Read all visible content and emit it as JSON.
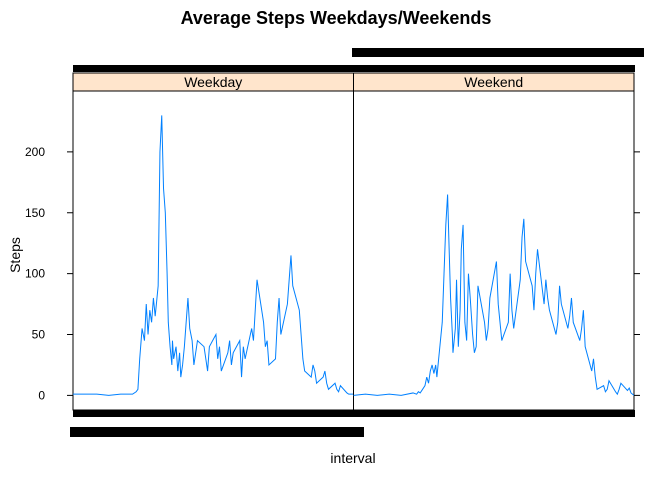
{
  "chart_data": {
    "type": "line",
    "title": "Average Steps Weekdays/Weekends",
    "xlabel": "interval",
    "ylabel": "Steps",
    "ylim": [
      -12,
      250
    ],
    "yticks": [
      0,
      50,
      100,
      150,
      200
    ],
    "xlim": [
      0,
      2355
    ],
    "grid": false,
    "legend": "none",
    "line_color": "#0080ff",
    "strip_color": "#ffe5cc",
    "panels": [
      {
        "name": "Weekday",
        "x": [
          0,
          100,
          200,
          300,
          400,
          500,
          530,
          545,
          560,
          580,
          600,
          615,
          630,
          645,
          660,
          675,
          690,
          700,
          715,
          730,
          745,
          760,
          775,
          790,
          800,
          815,
          830,
          835,
          845,
          855,
          865,
          880,
          895,
          905,
          920,
          935,
          950,
          965,
          980,
          1000,
          1015,
          1030,
          1045,
          1100,
          1115,
          1130,
          1145,
          1200,
          1215,
          1230,
          1245,
          1300,
          1315,
          1330,
          1345,
          1400,
          1415,
          1430,
          1445,
          1500,
          1515,
          1530,
          1545,
          1600,
          1615,
          1630,
          1645,
          1700,
          1715,
          1730,
          1745,
          1800,
          1815,
          1830,
          1845,
          1900,
          1915,
          1930,
          1945,
          2000,
          2015,
          2030,
          2045,
          2100,
          2115,
          2130,
          2145,
          2200,
          2215,
          2230,
          2245,
          2300,
          2315,
          2330,
          2355
        ],
        "y": [
          1,
          1,
          1,
          0,
          1,
          1,
          3,
          5,
          30,
          55,
          45,
          75,
          50,
          70,
          60,
          80,
          65,
          75,
          90,
          200,
          230,
          170,
          150,
          100,
          60,
          40,
          25,
          45,
          30,
          35,
          40,
          20,
          35,
          15,
          25,
          40,
          60,
          80,
          55,
          45,
          25,
          35,
          45,
          40,
          30,
          20,
          40,
          50,
          30,
          40,
          20,
          35,
          45,
          25,
          35,
          45,
          15,
          40,
          30,
          55,
          45,
          70,
          95,
          60,
          40,
          45,
          25,
          30,
          60,
          80,
          50,
          75,
          95,
          115,
          90,
          70,
          50,
          30,
          20,
          15,
          25,
          20,
          10,
          15,
          20,
          10,
          5,
          10,
          5,
          3,
          8,
          2,
          1,
          1,
          1
        ]
      },
      {
        "name": "Weekend",
        "x": [
          0,
          100,
          200,
          300,
          400,
          500,
          530,
          545,
          560,
          580,
          600,
          615,
          630,
          645,
          660,
          675,
          690,
          700,
          715,
          730,
          745,
          760,
          775,
          790,
          800,
          815,
          830,
          835,
          845,
          855,
          865,
          880,
          895,
          905,
          920,
          935,
          950,
          965,
          980,
          1000,
          1015,
          1030,
          1045,
          1100,
          1115,
          1130,
          1145,
          1200,
          1215,
          1230,
          1245,
          1300,
          1315,
          1330,
          1345,
          1400,
          1415,
          1430,
          1445,
          1500,
          1515,
          1530,
          1545,
          1600,
          1615,
          1630,
          1645,
          1700,
          1715,
          1730,
          1745,
          1800,
          1815,
          1830,
          1845,
          1900,
          1915,
          1930,
          1945,
          2000,
          2015,
          2030,
          2045,
          2100,
          2115,
          2130,
          2145,
          2200,
          2215,
          2230,
          2245,
          2300,
          2315,
          2330,
          2355
        ],
        "y": [
          0,
          1,
          0,
          1,
          0,
          2,
          1,
          3,
          2,
          5,
          8,
          15,
          10,
          20,
          25,
          18,
          25,
          15,
          30,
          45,
          60,
          100,
          140,
          165,
          130,
          80,
          50,
          35,
          45,
          55,
          95,
          40,
          70,
          120,
          140,
          60,
          45,
          100,
          80,
          50,
          35,
          40,
          90,
          60,
          45,
          55,
          80,
          110,
          75,
          60,
          45,
          60,
          100,
          70,
          55,
          95,
          130,
          145,
          110,
          90,
          70,
          100,
          120,
          75,
          95,
          80,
          70,
          50,
          60,
          90,
          75,
          55,
          65,
          80,
          60,
          45,
          55,
          70,
          40,
          20,
          30,
          15,
          5,
          8,
          3,
          5,
          12,
          3,
          1,
          5,
          10,
          4,
          6,
          2,
          0
        ]
      }
    ]
  }
}
